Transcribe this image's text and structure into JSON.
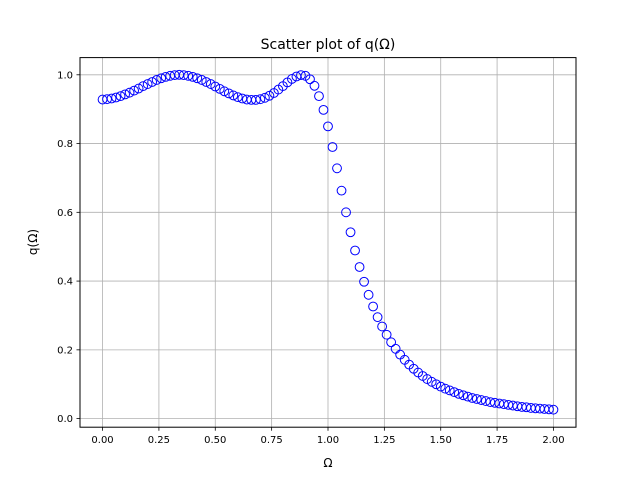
{
  "chart_data": {
    "type": "scatter",
    "title": "Scatter plot of q(Ω)",
    "xlabel": "Ω",
    "ylabel": "q(Ω)",
    "xlim": [
      -0.1,
      2.1
    ],
    "ylim": [
      -0.025,
      1.05
    ],
    "xticks": [
      "0.00",
      "0.25",
      "0.50",
      "0.75",
      "1.00",
      "1.25",
      "1.50",
      "1.75",
      "2.00"
    ],
    "yticks": [
      "0.0",
      "0.2",
      "0.4",
      "0.6",
      "0.8",
      "1.0"
    ],
    "grid": true,
    "marker": "open-circle",
    "marker_color": "#0000ff",
    "grid_color": "#b0b0b0",
    "series": [
      {
        "x": [
          0.0,
          0.02,
          0.04,
          0.06,
          0.08,
          0.1,
          0.12,
          0.14,
          0.16,
          0.18,
          0.2,
          0.22,
          0.24,
          0.26,
          0.28,
          0.3,
          0.32,
          0.34,
          0.36,
          0.38,
          0.4,
          0.42,
          0.44,
          0.46,
          0.48,
          0.5,
          0.52,
          0.54,
          0.56,
          0.58,
          0.6,
          0.62,
          0.64,
          0.66,
          0.68,
          0.7,
          0.72,
          0.74,
          0.76,
          0.78,
          0.8,
          0.82,
          0.84,
          0.86,
          0.88,
          0.9,
          0.92,
          0.94,
          0.96,
          0.98,
          1.0,
          1.02,
          1.04,
          1.06,
          1.08,
          1.1,
          1.12,
          1.14,
          1.16,
          1.18,
          1.2,
          1.22,
          1.24,
          1.26,
          1.28,
          1.3,
          1.32,
          1.34,
          1.36,
          1.38,
          1.4,
          1.42,
          1.44,
          1.46,
          1.48,
          1.5,
          1.52,
          1.54,
          1.56,
          1.58,
          1.6,
          1.62,
          1.64,
          1.66,
          1.68,
          1.7,
          1.72,
          1.74,
          1.76,
          1.78,
          1.8,
          1.82,
          1.84,
          1.86,
          1.88,
          1.9,
          1.92,
          1.94,
          1.96,
          1.98,
          2.0
        ],
        "y": [
          0.928,
          0.929,
          0.931,
          0.934,
          0.938,
          0.943,
          0.948,
          0.954,
          0.96,
          0.967,
          0.973,
          0.979,
          0.985,
          0.99,
          0.994,
          0.997,
          0.999,
          1.0,
          0.999,
          0.997,
          0.994,
          0.99,
          0.985,
          0.979,
          0.973,
          0.966,
          0.959,
          0.952,
          0.946,
          0.94,
          0.935,
          0.931,
          0.928,
          0.927,
          0.927,
          0.929,
          0.933,
          0.939,
          0.947,
          0.957,
          0.967,
          0.978,
          0.988,
          0.995,
          0.999,
          0.997,
          0.987,
          0.968,
          0.938,
          0.898,
          0.85,
          0.79,
          0.728,
          0.663,
          0.6,
          0.542,
          0.489,
          0.441,
          0.398,
          0.36,
          0.326,
          0.295,
          0.268,
          0.244,
          0.222,
          0.203,
          0.186,
          0.171,
          0.157,
          0.145,
          0.134,
          0.124,
          0.115,
          0.107,
          0.1,
          0.093,
          0.087,
          0.082,
          0.077,
          0.072,
          0.068,
          0.064,
          0.06,
          0.057,
          0.054,
          0.051,
          0.048,
          0.046,
          0.044,
          0.042,
          0.04,
          0.038,
          0.036,
          0.034,
          0.033,
          0.031,
          0.03,
          0.029,
          0.028,
          0.027,
          0.026
        ]
      }
    ]
  }
}
